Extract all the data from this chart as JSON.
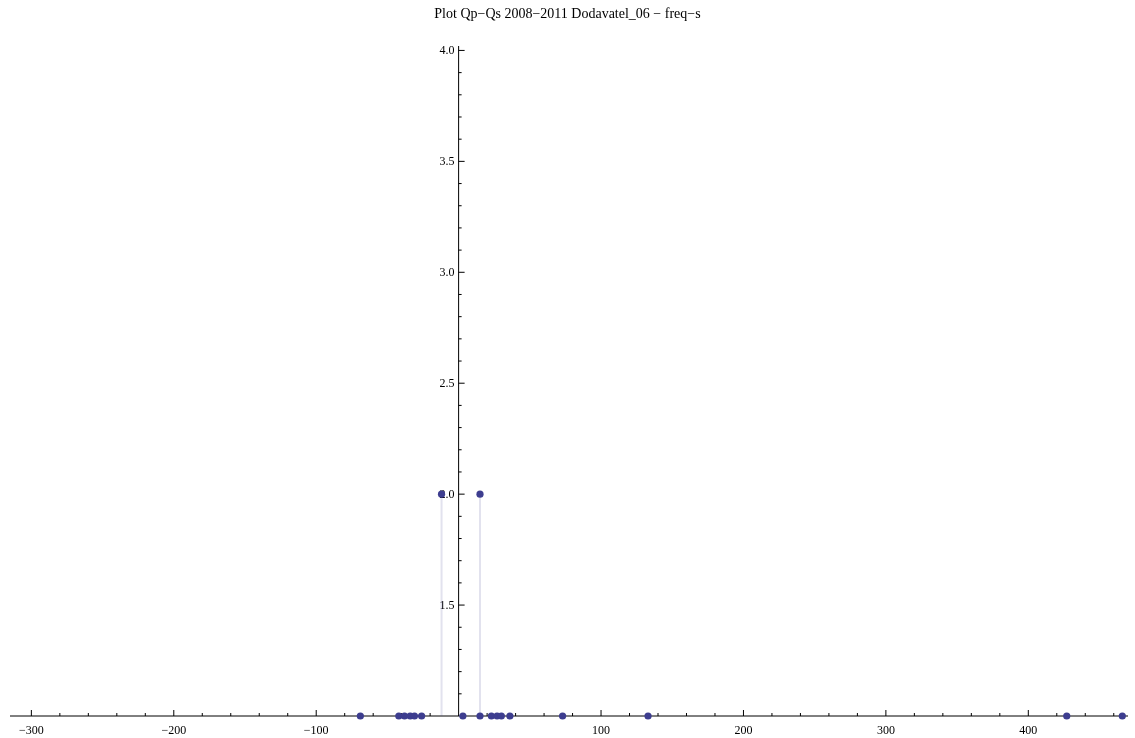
{
  "chart_data": {
    "type": "lollipop",
    "title": "Plot Qp−Qs 2008−2011 Dodavatel_06 − freq−s",
    "x": [
      -69,
      -42,
      -38,
      -34,
      -31,
      -26,
      -12,
      3,
      15,
      15,
      23,
      27,
      30,
      36,
      73,
      133,
      427,
      466
    ],
    "series": [
      {
        "color": "#3d3d8f",
        "values": [
          1,
          1,
          1,
          1,
          1,
          1,
          2,
          1,
          1,
          2,
          1,
          1,
          1,
          1,
          1,
          1,
          1,
          1
        ]
      }
    ],
    "xlim": [
      -315,
      470
    ],
    "ylim": [
      1,
      4.02
    ],
    "xticks": [
      -300,
      {
        "value": -280,
        "label": null
      },
      {
        "value": -260,
        "label": null
      },
      {
        "value": -240,
        "label": null
      },
      {
        "value": -220,
        "label": null
      },
      -200,
      {
        "value": -180,
        "label": null
      },
      {
        "value": -160,
        "label": null
      },
      {
        "value": -140,
        "label": null
      },
      {
        "value": -120,
        "label": null
      },
      -100,
      {
        "value": -80,
        "label": null
      },
      {
        "value": -60,
        "label": null
      },
      {
        "value": -40,
        "label": null
      },
      {
        "value": -20,
        "label": null
      },
      {
        "value": 20,
        "label": null
      },
      {
        "value": 40,
        "label": null
      },
      {
        "value": 60,
        "label": null
      },
      {
        "value": 80,
        "label": null
      },
      100,
      {
        "value": 120,
        "label": null
      },
      {
        "value": 140,
        "label": null
      },
      {
        "value": 160,
        "label": null
      },
      {
        "value": 180,
        "label": null
      },
      200,
      {
        "value": 220,
        "label": null
      },
      {
        "value": 240,
        "label": null
      },
      {
        "value": 260,
        "label": null
      },
      {
        "value": 280,
        "label": null
      },
      300,
      {
        "value": 320,
        "label": null
      },
      {
        "value": 340,
        "label": null
      },
      {
        "value": 360,
        "label": null
      },
      {
        "value": 380,
        "label": null
      },
      400,
      {
        "value": 420,
        "label": null
      },
      {
        "value": 440,
        "label": null
      },
      {
        "value": 460,
        "label": null
      }
    ],
    "yticks": [
      {
        "value": 1.1,
        "label": null
      },
      {
        "value": 1.2,
        "label": null
      },
      {
        "value": 1.3,
        "label": null
      },
      {
        "value": 1.4,
        "label": null
      },
      1.5,
      {
        "value": 1.6,
        "label": null
      },
      {
        "value": 1.7,
        "label": null
      },
      {
        "value": 1.8,
        "label": null
      },
      {
        "value": 1.9,
        "label": null
      },
      {
        "value": 2,
        "label": "2.0"
      },
      {
        "value": 2.1,
        "label": null
      },
      {
        "value": 2.2,
        "label": null
      },
      {
        "value": 2.3,
        "label": null
      },
      {
        "value": 2.4,
        "label": null
      },
      2.5,
      {
        "value": 2.6,
        "label": null
      },
      {
        "value": 2.7,
        "label": null
      },
      {
        "value": 2.8,
        "label": null
      },
      {
        "value": 2.9,
        "label": null
      },
      {
        "value": 3,
        "label": "3.0"
      },
      {
        "value": 3.1,
        "label": null
      },
      {
        "value": 3.2,
        "label": null
      },
      {
        "value": 3.3,
        "label": null
      },
      {
        "value": 3.4,
        "label": null
      },
      3.5,
      {
        "value": 3.6,
        "label": null
      },
      {
        "value": 3.7,
        "label": null
      },
      {
        "value": 3.8,
        "label": null
      },
      {
        "value": 3.9,
        "label": null
      },
      {
        "value": 4,
        "label": "4.0"
      }
    ],
    "marker": "circle"
  }
}
